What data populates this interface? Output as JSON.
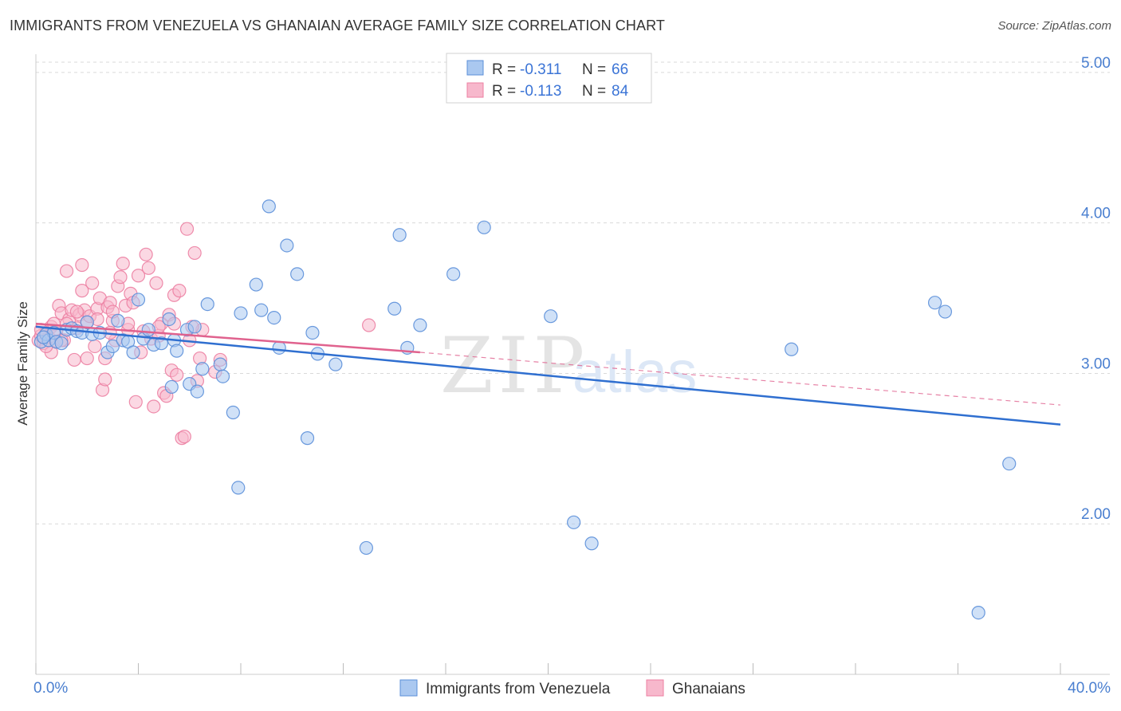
{
  "header": {
    "title": "IMMIGRANTS FROM VENEZUELA VS GHANAIAN AVERAGE FAMILY SIZE CORRELATION CHART",
    "source": "Source: ZipAtlas.com"
  },
  "watermark": {
    "zip": "ZIP",
    "atlas": "atlas"
  },
  "colors": {
    "blue_fill": "#aac8f0",
    "blue_stroke": "#5b8fd9",
    "blue_line": "#2f6fd0",
    "pink_fill": "#f7b8cc",
    "pink_stroke": "#ec7fa2",
    "pink_line": "#e0628e",
    "grid": "#d9d9d9",
    "axis_text": "#4a7fd0"
  },
  "chart_data": {
    "type": "scatter",
    "title": "IMMIGRANTS FROM VENEZUELA VS GHANAIAN AVERAGE FAMILY SIZE CORRELATION CHART",
    "xlabel": "",
    "ylabel": "Average Family Size",
    "xlim": [
      0,
      40
    ],
    "ylim": [
      1.0,
      5.1
    ],
    "x_tick_labels": [
      "0.0%",
      "40.0%"
    ],
    "y_ticks": [
      2.0,
      3.0,
      4.0,
      5.0
    ],
    "y_tick_labels": [
      "2.00",
      "3.00",
      "4.00",
      "5.00"
    ],
    "legend": {
      "placement": "top-center",
      "rows": [
        {
          "r_label": "R =",
          "r_value": "-0.311",
          "n_label": "N =",
          "n_value": "66"
        },
        {
          "r_label": "R =",
          "r_value": "-0.113",
          "n_label": "N =",
          "n_value": "84"
        }
      ]
    },
    "series": [
      {
        "name": "Immigrants from Venezuela",
        "trend": {
          "x": [
            0.0,
            40.0
          ],
          "y": [
            3.31,
            2.66
          ],
          "style": "solid"
        },
        "points": [
          [
            0.2,
            3.21
          ],
          [
            0.4,
            3.26
          ],
          [
            0.5,
            3.22
          ],
          [
            0.7,
            3.27
          ],
          [
            0.8,
            3.21
          ],
          [
            1.0,
            3.2
          ],
          [
            1.2,
            3.29
          ],
          [
            1.4,
            3.3
          ],
          [
            1.6,
            3.28
          ],
          [
            1.8,
            3.27
          ],
          [
            2.0,
            3.34
          ],
          [
            2.2,
            3.26
          ],
          [
            2.5,
            3.27
          ],
          [
            2.8,
            3.14
          ],
          [
            3.0,
            3.18
          ],
          [
            3.2,
            3.35
          ],
          [
            3.4,
            3.22
          ],
          [
            3.6,
            3.21
          ],
          [
            3.8,
            3.14
          ],
          [
            4.0,
            3.49
          ],
          [
            4.2,
            3.23
          ],
          [
            4.4,
            3.29
          ],
          [
            4.6,
            3.19
          ],
          [
            4.9,
            3.2
          ],
          [
            5.2,
            3.36
          ],
          [
            5.3,
            2.91
          ],
          [
            5.4,
            3.22
          ],
          [
            5.5,
            3.15
          ],
          [
            5.9,
            3.29
          ],
          [
            6.0,
            2.93
          ],
          [
            6.2,
            3.31
          ],
          [
            6.3,
            2.88
          ],
          [
            6.5,
            3.03
          ],
          [
            6.7,
            3.46
          ],
          [
            7.2,
            3.06
          ],
          [
            7.3,
            2.98
          ],
          [
            7.7,
            2.74
          ],
          [
            7.9,
            2.24
          ],
          [
            8.0,
            3.4
          ],
          [
            8.6,
            3.59
          ],
          [
            8.8,
            3.42
          ],
          [
            9.1,
            4.11
          ],
          [
            9.3,
            3.37
          ],
          [
            9.5,
            3.17
          ],
          [
            9.8,
            3.85
          ],
          [
            10.2,
            3.66
          ],
          [
            10.6,
            2.57
          ],
          [
            10.8,
            3.27
          ],
          [
            11.0,
            3.13
          ],
          [
            11.7,
            3.06
          ],
          [
            12.9,
            1.84
          ],
          [
            14.0,
            3.43
          ],
          [
            14.2,
            3.92
          ],
          [
            14.5,
            3.17
          ],
          [
            15.0,
            3.32
          ],
          [
            16.3,
            3.66
          ],
          [
            17.5,
            3.97
          ],
          [
            20.1,
            3.38
          ],
          [
            21.0,
            2.01
          ],
          [
            21.7,
            1.87
          ],
          [
            29.5,
            3.16
          ],
          [
            35.1,
            3.47
          ],
          [
            35.5,
            3.41
          ],
          [
            36.8,
            1.41
          ],
          [
            38.0,
            2.4
          ],
          [
            0.3,
            3.24
          ]
        ]
      },
      {
        "name": "Ghanaians",
        "trend": {
          "x": [
            0.0,
            15.0
          ],
          "y": [
            3.33,
            3.14
          ],
          "style": "solid",
          "dashed_extension_to": [
            40.0,
            2.79
          ]
        },
        "points": [
          [
            0.1,
            3.22
          ],
          [
            0.2,
            3.25
          ],
          [
            0.3,
            3.2
          ],
          [
            0.4,
            3.27
          ],
          [
            0.5,
            3.24
          ],
          [
            0.6,
            3.31
          ],
          [
            0.6,
            3.14
          ],
          [
            0.7,
            3.33
          ],
          [
            0.8,
            3.21
          ],
          [
            0.9,
            3.45
          ],
          [
            1.0,
            3.4
          ],
          [
            1.1,
            3.22
          ],
          [
            1.2,
            3.68
          ],
          [
            1.3,
            3.36
          ],
          [
            1.4,
            3.42
          ],
          [
            1.5,
            3.09
          ],
          [
            1.6,
            3.3
          ],
          [
            1.7,
            3.39
          ],
          [
            1.8,
            3.55
          ],
          [
            1.8,
            3.72
          ],
          [
            1.9,
            3.42
          ],
          [
            2.0,
            3.34
          ],
          [
            2.1,
            3.38
          ],
          [
            2.2,
            3.6
          ],
          [
            2.3,
            3.18
          ],
          [
            2.4,
            3.43
          ],
          [
            2.5,
            3.5
          ],
          [
            2.6,
            2.89
          ],
          [
            2.7,
            3.1
          ],
          [
            2.7,
            2.96
          ],
          [
            2.8,
            3.44
          ],
          [
            2.9,
            3.47
          ],
          [
            3.0,
            3.35
          ],
          [
            3.1,
            3.22
          ],
          [
            3.2,
            3.58
          ],
          [
            3.3,
            3.64
          ],
          [
            3.4,
            3.73
          ],
          [
            3.5,
            3.45
          ],
          [
            3.6,
            3.29
          ],
          [
            3.7,
            3.53
          ],
          [
            3.8,
            3.47
          ],
          [
            3.9,
            2.81
          ],
          [
            4.0,
            3.65
          ],
          [
            4.1,
            3.14
          ],
          [
            4.3,
            3.79
          ],
          [
            4.4,
            3.7
          ],
          [
            4.5,
            3.23
          ],
          [
            4.6,
            2.78
          ],
          [
            4.7,
            3.6
          ],
          [
            4.8,
            3.25
          ],
          [
            4.9,
            3.33
          ],
          [
            5.0,
            2.87
          ],
          [
            5.1,
            2.85
          ],
          [
            5.2,
            3.39
          ],
          [
            5.3,
            3.02
          ],
          [
            5.4,
            3.52
          ],
          [
            5.5,
            2.99
          ],
          [
            5.6,
            3.55
          ],
          [
            5.7,
            2.57
          ],
          [
            5.8,
            2.58
          ],
          [
            5.9,
            3.96
          ],
          [
            6.0,
            3.22
          ],
          [
            6.2,
            3.8
          ],
          [
            6.3,
            2.95
          ],
          [
            6.4,
            3.1
          ],
          [
            6.5,
            3.29
          ],
          [
            7.0,
            3.01
          ],
          [
            7.2,
            3.09
          ],
          [
            13.0,
            3.32
          ],
          [
            1.2,
            3.33
          ],
          [
            0.4,
            3.18
          ],
          [
            2.0,
            3.1
          ],
          [
            3.0,
            3.41
          ],
          [
            4.2,
            3.28
          ],
          [
            5.4,
            3.33
          ],
          [
            6.1,
            3.31
          ],
          [
            1.6,
            3.41
          ],
          [
            0.8,
            3.28
          ],
          [
            2.4,
            3.36
          ],
          [
            3.6,
            3.33
          ],
          [
            0.2,
            3.29
          ],
          [
            1.0,
            3.22
          ],
          [
            2.9,
            3.27
          ],
          [
            4.8,
            3.31
          ]
        ]
      }
    ]
  }
}
